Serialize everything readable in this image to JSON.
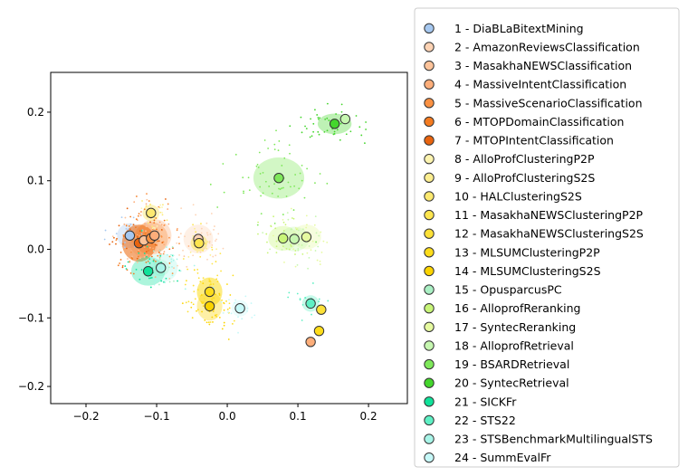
{
  "chart_data": {
    "type": "scatter",
    "title": "",
    "xlabel": "",
    "ylabel": "",
    "xlim": [
      -0.25,
      0.255
    ],
    "ylim": [
      -0.225,
      0.258
    ],
    "x_ticks": [
      "−0.2",
      "−0.1",
      "0.0",
      "0.1",
      "0.2"
    ],
    "x_tick_values": [
      -0.2,
      -0.1,
      0.0,
      0.1,
      0.2
    ],
    "y_ticks": [
      "−0.2",
      "−0.1",
      "0.0",
      "0.1",
      "0.2"
    ],
    "y_tick_values": [
      -0.2,
      -0.1,
      0.0,
      0.1,
      0.2
    ],
    "grid": false,
    "legend_placement": "outside-right",
    "series": [
      {
        "name": "1 - DiaBLaBitextMining",
        "color": "#a6c8f0",
        "centroid": [
          -0.138,
          0.02
        ],
        "spread": [
          0.03,
          0.03
        ],
        "density": 0.3
      },
      {
        "name": "2 - AmazonReviewsClassification",
        "color": "#fdd3b4",
        "centroid": [
          -0.041,
          0.015
        ],
        "spread": [
          0.035,
          0.035
        ],
        "density": 0.6
      },
      {
        "name": "3 - MasakhaNEWSClassification",
        "color": "#fdc39a",
        "centroid": [
          -0.118,
          0.013
        ],
        "spread": [
          0.035,
          0.04
        ],
        "density": 0.5
      },
      {
        "name": "4 - MassiveIntentClassification",
        "color": "#fdae7a",
        "centroid": [
          -0.103,
          0.02
        ],
        "spread": [
          0.04,
          0.04
        ],
        "density": 0.6
      },
      {
        "name": "5 - MassiveScenarioClassification",
        "color": "#fa9142",
        "centroid": [
          -0.108,
          0.016
        ],
        "spread": [
          0.04,
          0.04
        ],
        "density": 0.6
      },
      {
        "name": "6 - MTOPDomainClassification",
        "color": "#f47b20",
        "centroid": [
          -0.125,
          0.009
        ],
        "spread": [
          0.04,
          0.045
        ],
        "density": 0.7
      },
      {
        "name": "7 - MTOPIntentClassification",
        "color": "#e8640f",
        "centroid": [
          -0.125,
          0.009
        ],
        "spread": [
          0.04,
          0.045
        ],
        "density": 0.7
      },
      {
        "name": "8 - AlloProfClusteringP2P",
        "color": "#fdf4b0",
        "centroid": [
          -0.108,
          0.053
        ],
        "spread": [
          0.02,
          0.02
        ],
        "density": 0.25
      },
      {
        "name": "9 - AlloProfClusteringS2S",
        "color": "#fcee90",
        "centroid": [
          -0.04,
          0.009
        ],
        "spread": [
          0.02,
          0.02
        ],
        "density": 0.25
      },
      {
        "name": "10 - HALClusteringS2S",
        "color": "#fce970",
        "centroid": [
          -0.108,
          0.053
        ],
        "spread": [
          0.02,
          0.02
        ],
        "density": 0.25
      },
      {
        "name": "11 - MasakhaNEWSClusteringP2P",
        "color": "#fde54f",
        "centroid": [
          -0.04,
          0.009
        ],
        "spread": [
          0.02,
          0.02
        ],
        "density": 0.25
      },
      {
        "name": "12 - MasakhaNEWSClusteringS2S",
        "color": "#fde138",
        "centroid": [
          -0.025,
          -0.062
        ],
        "spread": [
          0.03,
          0.035
        ],
        "density": 0.5
      },
      {
        "name": "13 - MLSUMClusteringP2P",
        "color": "#fddc1a",
        "centroid": [
          -0.025,
          -0.062
        ],
        "spread": [
          0.03,
          0.035
        ],
        "density": 0.5
      },
      {
        "name": "14 - MLSUMClusteringS2S",
        "color": "#fbd300",
        "centroid": [
          -0.025,
          -0.083
        ],
        "spread": [
          0.03,
          0.035
        ],
        "density": 0.5
      },
      {
        "name": "15 - OpusparcusPC",
        "color": "#aaf0c4",
        "centroid": [
          -0.094,
          -0.027
        ],
        "spread": [
          0.02,
          0.02
        ],
        "density": 0.25
      },
      {
        "name": "16 - AlloprofReranking",
        "color": "#c8f578",
        "centroid": [
          0.079,
          0.016
        ],
        "spread": [
          0.035,
          0.03
        ],
        "density": 0.5
      },
      {
        "name": "17 - SyntecReranking",
        "color": "#e6faa0",
        "centroid": [
          0.112,
          0.018
        ],
        "spread": [
          0.035,
          0.03
        ],
        "density": 0.5
      },
      {
        "name": "18 - AlloprofRetrieval",
        "color": "#c6f7b0",
        "centroid": [
          0.095,
          0.015
        ],
        "spread": [
          0.035,
          0.03
        ],
        "density": 0.5
      },
      {
        "name": "19 - BSARDRetrieval",
        "color": "#7ee85a",
        "centroid": [
          0.073,
          0.104
        ],
        "spread": [
          0.06,
          0.05
        ],
        "density": 1.0
      },
      {
        "name": "20 - SyntecRetrieval",
        "color": "#44d62c",
        "centroid": [
          0.152,
          0.183
        ],
        "spread": [
          0.04,
          0.025
        ],
        "density": 0.8
      },
      {
        "name": "21 - SICKFr",
        "color": "#10e29a",
        "centroid": [
          -0.112,
          -0.032
        ],
        "spread": [
          0.04,
          0.035
        ],
        "density": 0.6
      },
      {
        "name": "22 - STS22",
        "color": "#5ef0c4",
        "centroid": [
          0.118,
          -0.079
        ],
        "spread": [
          0.02,
          0.02
        ],
        "density": 0.3
      },
      {
        "name": "23 - STSBenchmarkMultilingualSTS",
        "color": "#a8f5e8",
        "centroid": [
          -0.094,
          -0.027
        ],
        "spread": [
          0.04,
          0.035
        ],
        "density": 0.5
      },
      {
        "name": "24 - SummEvalFr",
        "color": "#c6f8f8",
        "centroid": [
          0.018,
          -0.086
        ],
        "spread": [
          0.02,
          0.02
        ],
        "density": 0.3
      }
    ],
    "centroid_markers": [
      {
        "x": -0.138,
        "y": 0.02,
        "color": "#a6c8f0"
      },
      {
        "x": -0.125,
        "y": 0.009,
        "color": "#e8640f"
      },
      {
        "x": -0.118,
        "y": 0.013,
        "color": "#fdc39a"
      },
      {
        "x": -0.108,
        "y": 0.016,
        "color": "#fa9142"
      },
      {
        "x": -0.103,
        "y": 0.02,
        "color": "#fdae7a"
      },
      {
        "x": -0.108,
        "y": 0.053,
        "color": "#fce970"
      },
      {
        "x": -0.041,
        "y": 0.015,
        "color": "#fdd3b4"
      },
      {
        "x": -0.04,
        "y": 0.009,
        "color": "#fde54f"
      },
      {
        "x": -0.112,
        "y": -0.032,
        "color": "#10e29a"
      },
      {
        "x": -0.094,
        "y": -0.027,
        "color": "#a8f5e8"
      },
      {
        "x": -0.025,
        "y": -0.062,
        "color": "#fddc1a"
      },
      {
        "x": -0.025,
        "y": -0.083,
        "color": "#fbd300"
      },
      {
        "x": 0.018,
        "y": -0.086,
        "color": "#c6f8f8"
      },
      {
        "x": 0.073,
        "y": 0.104,
        "color": "#7ee85a"
      },
      {
        "x": 0.079,
        "y": 0.016,
        "color": "#c8f578"
      },
      {
        "x": 0.095,
        "y": 0.015,
        "color": "#c6f7b0"
      },
      {
        "x": 0.112,
        "y": 0.018,
        "color": "#e6faa0"
      },
      {
        "x": 0.152,
        "y": 0.183,
        "color": "#44d62c"
      },
      {
        "x": 0.167,
        "y": 0.19,
        "color": "#c6f7b0"
      },
      {
        "x": 0.118,
        "y": -0.079,
        "color": "#5ef0c4"
      },
      {
        "x": 0.133,
        "y": -0.088,
        "color": "#fde138"
      },
      {
        "x": 0.13,
        "y": -0.119,
        "color": "#fddc1a"
      },
      {
        "x": 0.118,
        "y": -0.135,
        "color": "#fdae7a"
      }
    ]
  }
}
